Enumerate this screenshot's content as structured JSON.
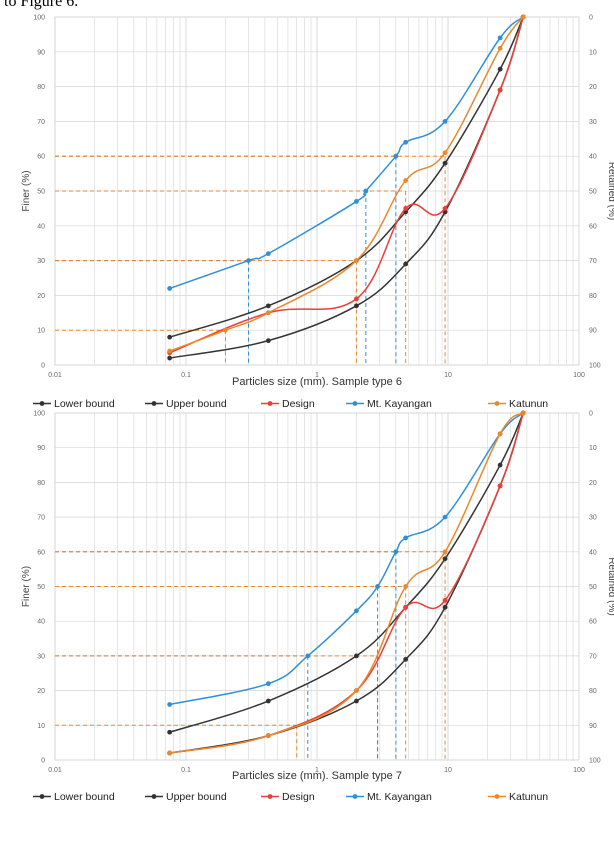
{
  "caption": "to Figure 6.",
  "colors": {
    "lower": "#333333",
    "upper": "#333333",
    "design": "#e8403a",
    "kayangan": "#2f8fd8",
    "katunun": "#e8892c",
    "grid": "#d6d6d6"
  },
  "chart_data": [
    {
      "type": "line",
      "xscale": "log",
      "xlim": [
        0.01,
        100
      ],
      "ylim": [
        0,
        100
      ],
      "y2lim": [
        100,
        0
      ],
      "xlabel": "Particles size (mm). Sample type 6",
      "ylabel": "Finer (%)",
      "y2label": "Retained (%)",
      "x_ticks": [
        "0.01",
        "0.1",
        "1",
        "10",
        "100"
      ],
      "y_ticks": [
        "0",
        "10",
        "20",
        "30",
        "40",
        "50",
        "60",
        "70",
        "80",
        "90",
        "100"
      ],
      "y2_ticks": [
        "100",
        "90",
        "80",
        "70",
        "60",
        "50",
        "40",
        "30",
        "20",
        "10",
        "0"
      ],
      "grid": true,
      "legend": "bottom",
      "series": [
        {
          "name": "Lower bound",
          "color_key": "lower",
          "x": [
            0.075,
            0.425,
            2,
            4.75,
            9.5,
            25,
            37.5
          ],
          "y": [
            2,
            7,
            17,
            29,
            44,
            79,
            100
          ]
        },
        {
          "name": "Upper bound",
          "color_key": "upper",
          "x": [
            0.075,
            0.425,
            2,
            4.75,
            9.5,
            25,
            37.5
          ],
          "y": [
            8,
            17,
            30,
            44,
            58,
            85,
            100
          ]
        },
        {
          "name": "Design",
          "color_key": "design",
          "x": [
            0.075,
            0.425,
            2,
            4.75,
            9.5,
            25,
            37.5
          ],
          "y": [
            3.5,
            15,
            19,
            45,
            45,
            79,
            100
          ]
        },
        {
          "name": "Mt. Kayangan",
          "color_key": "kayangan",
          "x": [
            0.075,
            0.3,
            0.425,
            2,
            2.36,
            4,
            4.75,
            9.5,
            25,
            37.5
          ],
          "y": [
            22,
            30,
            32,
            47,
            50,
            60,
            64,
            70,
            94,
            100
          ]
        },
        {
          "name": "Katunun",
          "color_key": "katunun",
          "x": [
            0.075,
            0.2,
            0.425,
            2,
            4.75,
            9.5,
            25,
            37.5
          ],
          "y": [
            4,
            10,
            15,
            30,
            53,
            61,
            91,
            100
          ]
        }
      ],
      "guides": [
        {
          "color_key": "katunun",
          "x": [
            0.2
          ],
          "y": 10
        },
        {
          "color_key": "kayangan",
          "x": [
            0.3
          ],
          "y": 30
        },
        {
          "color_key": "katunun",
          "x": [
            2.0
          ],
          "y": 30
        },
        {
          "color_key": "kayangan",
          "x": [
            2.36
          ],
          "y": 50
        },
        {
          "color_key": "kayangan",
          "x": [
            4.0
          ],
          "y": 60
        },
        {
          "color_key": "katunun",
          "x": [
            4.75
          ],
          "y": 50
        },
        {
          "color_key": "katunun",
          "x": [
            9.5
          ],
          "y": 60
        }
      ]
    },
    {
      "type": "line",
      "xscale": "log",
      "xlim": [
        0.01,
        100
      ],
      "ylim": [
        0,
        100
      ],
      "y2lim": [
        100,
        0
      ],
      "xlabel": "Particles size (mm). Sample type 7",
      "ylabel": "Finer (%)",
      "y2label": "Retained (%)",
      "x_ticks": [
        "0.01",
        "0.1",
        "1",
        "10",
        "100"
      ],
      "y_ticks": [
        "0",
        "10",
        "20",
        "30",
        "40",
        "50",
        "60",
        "70",
        "80",
        "90",
        "100"
      ],
      "y2_ticks": [
        "100",
        "90",
        "80",
        "70",
        "60",
        "50",
        "40",
        "30",
        "20",
        "10",
        "0"
      ],
      "grid": true,
      "legend": "bottom",
      "series": [
        {
          "name": "Lower bound",
          "color_key": "lower",
          "x": [
            0.075,
            0.425,
            2,
            4.75,
            9.5,
            25,
            37.5
          ],
          "y": [
            2,
            7,
            17,
            29,
            44,
            79,
            100
          ]
        },
        {
          "name": "Upper bound",
          "color_key": "upper",
          "x": [
            0.075,
            0.425,
            2,
            4.75,
            9.5,
            25,
            37.5
          ],
          "y": [
            8,
            17,
            30,
            44,
            58,
            85,
            100
          ]
        },
        {
          "name": "Design",
          "color_key": "design",
          "x": [
            0.075,
            0.425,
            2,
            4.75,
            9.5,
            25,
            37.5
          ],
          "y": [
            2,
            7,
            20,
            44,
            46,
            79,
            100
          ]
        },
        {
          "name": "Mt. Kayangan",
          "color_key": "kayangan",
          "x": [
            0.075,
            0.425,
            0.85,
            2,
            2.9,
            4,
            4.75,
            9.5,
            25,
            37.5
          ],
          "y": [
            16,
            22,
            30,
            43,
            50,
            60,
            64,
            70,
            94,
            100
          ]
        },
        {
          "name": "Katunun",
          "color_key": "katunun",
          "x": [
            0.075,
            0.425,
            2,
            4.75,
            9.5,
            25,
            37.5
          ],
          "y": [
            2,
            7,
            20,
            50,
            60,
            94,
            100
          ]
        }
      ],
      "guides": [
        {
          "color_key": "katunun",
          "x": [
            0.7
          ],
          "y": 10
        },
        {
          "color_key": "kayangan",
          "x": [
            0.85
          ],
          "y": 30
        },
        {
          "color_key": "katunun",
          "x": [
            2.9
          ],
          "y": 30
        },
        {
          "color_key": "kayangan",
          "x": [
            2.9
          ],
          "y": 50
        },
        {
          "color_key": "kayangan",
          "x": [
            4.0
          ],
          "y": 60
        },
        {
          "color_key": "katunun",
          "x": [
            4.75
          ],
          "y": 50
        },
        {
          "color_key": "katunun",
          "x": [
            9.5
          ],
          "y": 60
        }
      ]
    }
  ]
}
